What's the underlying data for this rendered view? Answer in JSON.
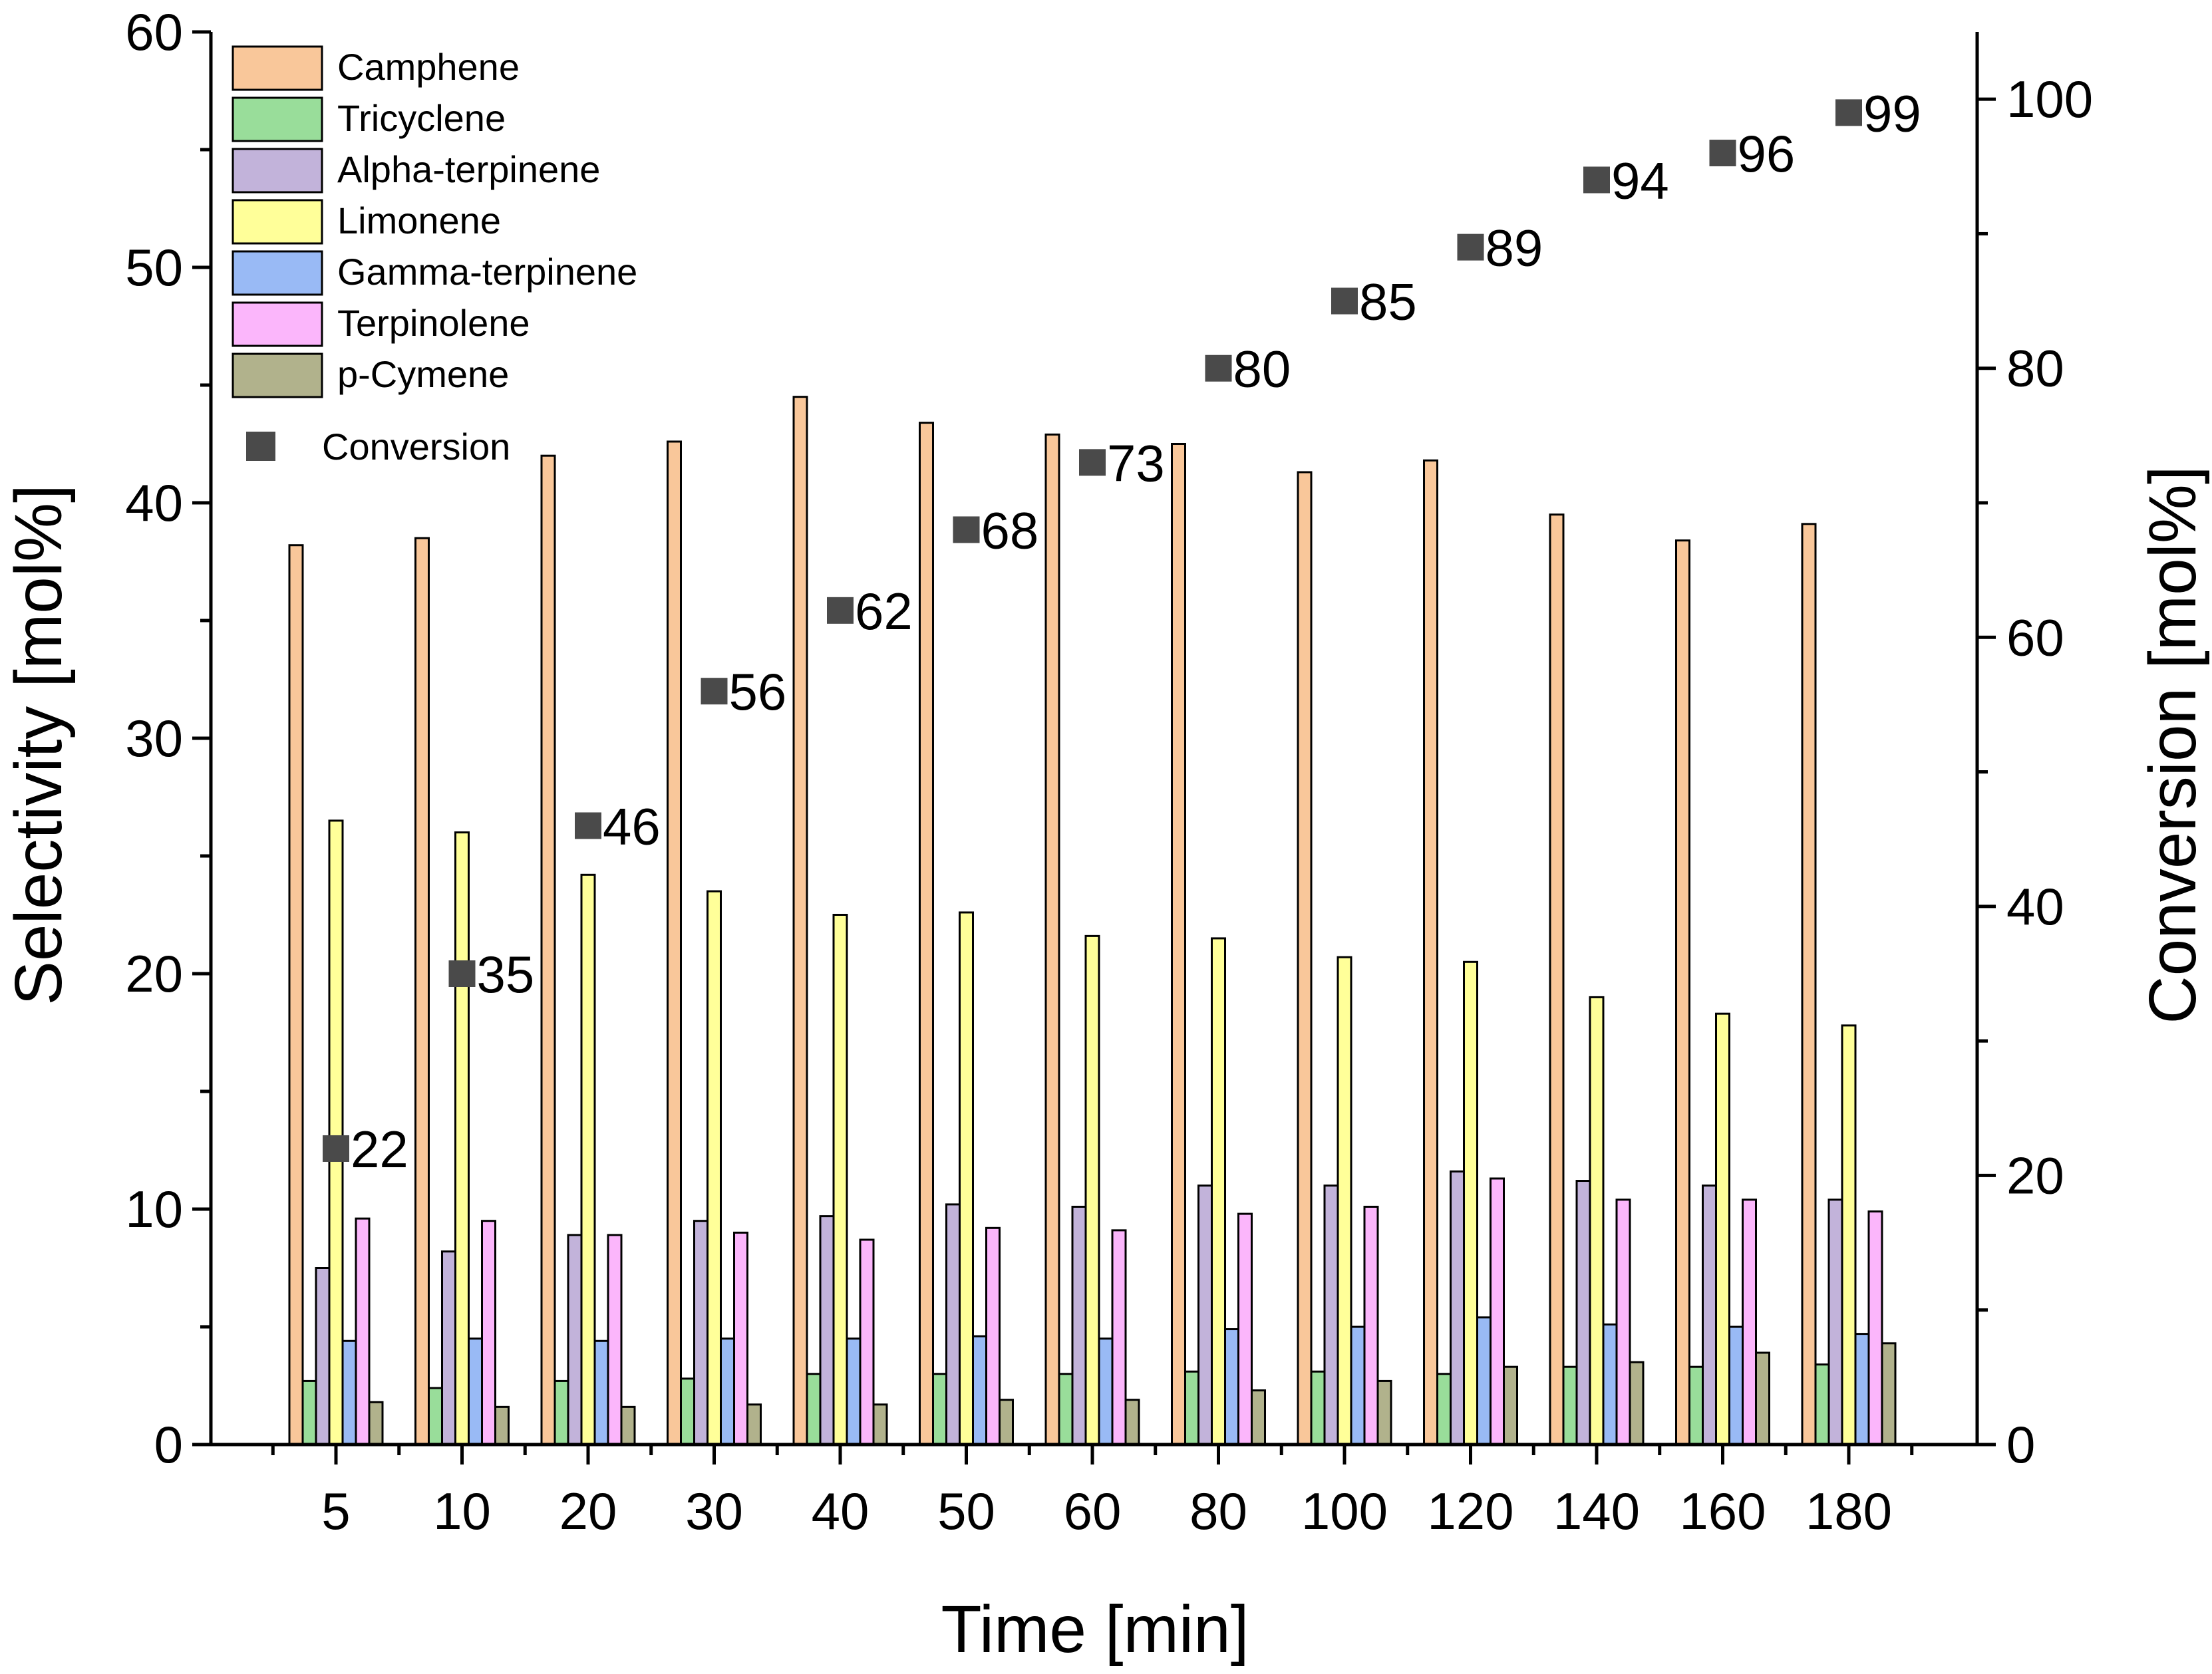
{
  "chart_data": {
    "type": "bar",
    "xlabel": "Time [min]",
    "ylabel": "Selectivity [mol%]",
    "y2label": "Conversion [mol%]",
    "ylim": [
      0,
      60
    ],
    "y2lim": [
      0,
      105
    ],
    "yticks": [
      "0",
      "10",
      "20",
      "30",
      "40",
      "50",
      "60"
    ],
    "y2ticks": [
      "0",
      "20",
      "40",
      "60",
      "80",
      "100"
    ],
    "categories": [
      "5",
      "10",
      "20",
      "30",
      "40",
      "50",
      "60",
      "80",
      "100",
      "120",
      "140",
      "160",
      "180"
    ],
    "series": [
      {
        "name": "Camphene",
        "color": "#f9c79a",
        "values": [
          38.2,
          38.5,
          42.0,
          42.6,
          44.5,
          43.4,
          42.9,
          42.5,
          41.3,
          41.8,
          39.5,
          38.4,
          39.1
        ]
      },
      {
        "name": "Tricyclene",
        "color": "#99dd9a",
        "values": [
          2.7,
          2.4,
          2.7,
          2.8,
          3.0,
          3.0,
          3.0,
          3.1,
          3.1,
          3.0,
          3.3,
          3.3,
          3.4
        ]
      },
      {
        "name": "Alpha-terpinene",
        "color": "#c2b3da",
        "values": [
          7.5,
          8.2,
          8.9,
          9.5,
          9.7,
          10.2,
          10.1,
          11.0,
          11.0,
          11.6,
          11.2,
          11.0,
          10.4
        ]
      },
      {
        "name": "Limonene",
        "color": "#ffff99",
        "values": [
          26.5,
          26.0,
          24.2,
          23.5,
          22.5,
          22.6,
          21.6,
          21.5,
          20.7,
          20.5,
          19.0,
          18.3,
          17.8
        ]
      },
      {
        "name": "Gamma-terpinene",
        "color": "#99baf5",
        "values": [
          4.4,
          4.5,
          4.4,
          4.5,
          4.5,
          4.6,
          4.5,
          4.9,
          5.0,
          5.4,
          5.1,
          5.0,
          4.7
        ]
      },
      {
        "name": "Terpinolene",
        "color": "#fbb6fb",
        "values": [
          9.6,
          9.5,
          8.9,
          9.0,
          8.7,
          9.2,
          9.1,
          9.8,
          10.1,
          11.3,
          10.4,
          10.4,
          9.9
        ]
      },
      {
        "name": "p-Cymene",
        "color": "#b1b28c",
        "values": [
          1.8,
          1.6,
          1.6,
          1.7,
          1.7,
          1.9,
          1.9,
          2.3,
          2.7,
          3.3,
          3.5,
          3.9,
          4.3
        ]
      }
    ],
    "conversion": {
      "name": "Conversion",
      "color": "#4a4a4a",
      "values": [
        22,
        35,
        46,
        56,
        62,
        68,
        73,
        80,
        85,
        89,
        94,
        96,
        99
      ],
      "labels": [
        "22",
        "35",
        "46",
        "56",
        "62",
        "68",
        "73",
        "80",
        "85",
        "89",
        "94",
        "96",
        "99"
      ]
    }
  }
}
